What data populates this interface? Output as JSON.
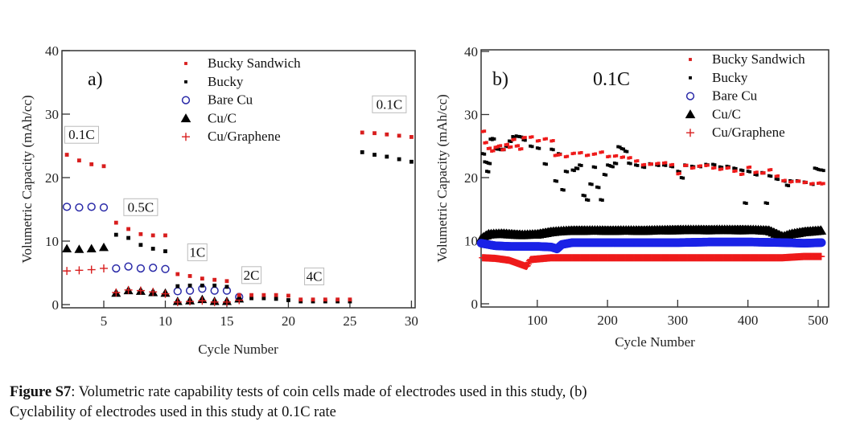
{
  "caption": {
    "label": "Figure S7",
    "text_line1": ": Volumetric rate capability tests of coin cells made of electrodes used in this study, (b)",
    "text_line2": "Cyclability of electrodes used in this study at 0.1C rate"
  },
  "colors": {
    "bucky_sandwich": "#d81e1e",
    "bucky": "#000000",
    "bare_cu": "#2a2aa8",
    "cu_c": "#000000",
    "cu_graphene": "#d81e1e",
    "band_blue": "#1a22e6",
    "band_red": "#ee1a1a"
  },
  "chart_data": [
    {
      "type": "scatter",
      "panel_label": "a)",
      "title": "",
      "xlabel": "Cycle Number",
      "ylabel": "Volumetric Capacity (mAh/cc)",
      "xlim": [
        1.6,
        30.3
      ],
      "ylim": [
        0,
        40
      ],
      "xticks": [
        5,
        10,
        15,
        20,
        25,
        30
      ],
      "yticks": [
        0,
        10,
        20,
        30,
        40
      ],
      "grid": false,
      "legend": {
        "placement": "top-right",
        "entries": [
          {
            "name": "Bucky Sandwich",
            "marker": "square",
            "color": "#d81e1e"
          },
          {
            "name": "Bucky",
            "marker": "square",
            "color": "#000000"
          },
          {
            "name": "Bare Cu",
            "marker": "circle-open",
            "color": "#2a2aa8"
          },
          {
            "name": "Cu/C",
            "marker": "triangle",
            "color": "#000000"
          },
          {
            "name": "Cu/Graphene",
            "marker": "plus",
            "color": "#d81e1e"
          }
        ]
      },
      "annotations": [
        {
          "text": "0.1C",
          "x": 3.2,
          "y": 26.3
        },
        {
          "text": "0.5C",
          "x": 8.0,
          "y": 14.9
        },
        {
          "text": "1C",
          "x": 12.6,
          "y": 7.8
        },
        {
          "text": "2C",
          "x": 17.0,
          "y": 4.2
        },
        {
          "text": "4C",
          "x": 22.1,
          "y": 4.0
        },
        {
          "text": "0.1C",
          "x": 28.2,
          "y": 31.1
        }
      ],
      "series": [
        {
          "name": "Bucky Sandwich",
          "x": [
            2,
            3,
            4,
            5,
            6,
            7,
            8,
            9,
            10,
            11,
            12,
            13,
            14,
            15,
            16,
            17,
            18,
            19,
            20,
            21,
            22,
            23,
            24,
            25,
            26,
            27,
            28,
            29,
            30
          ],
          "y": [
            23.6,
            22.7,
            22.1,
            21.8,
            12.9,
            11.9,
            11.1,
            10.9,
            10.9,
            4.8,
            4.5,
            4.1,
            3.9,
            3.7,
            1.5,
            1.5,
            1.5,
            1.5,
            1.4,
            0.8,
            0.8,
            0.8,
            0.8,
            0.8,
            27.1,
            27.0,
            26.8,
            26.6,
            26.4
          ]
        },
        {
          "name": "Bucky",
          "x": [
            2,
            3,
            4,
            5,
            6,
            7,
            8,
            9,
            10,
            11,
            12,
            13,
            14,
            15,
            16,
            17,
            18,
            19,
            20,
            21,
            22,
            23,
            24,
            25,
            26,
            27,
            28,
            29,
            30
          ],
          "y": [
            null,
            null,
            null,
            null,
            11.0,
            10.5,
            9.4,
            8.8,
            8.4,
            2.9,
            3.0,
            3.0,
            3.0,
            2.8,
            1.1,
            1.0,
            1.0,
            0.9,
            0.7,
            0.5,
            0.5,
            0.5,
            0.5,
            0.5,
            24.0,
            23.6,
            23.3,
            22.9,
            22.5
          ]
        },
        {
          "name": "Bare Cu",
          "x": [
            2,
            3,
            4,
            5,
            6,
            7,
            8,
            9,
            10,
            11,
            12,
            13,
            14,
            15,
            16
          ],
          "y": [
            15.4,
            15.3,
            15.4,
            15.3,
            5.7,
            6.0,
            5.7,
            5.8,
            5.6,
            2.1,
            2.2,
            2.5,
            2.2,
            2.2,
            1.2
          ]
        },
        {
          "name": "Cu/C",
          "x": [
            2,
            3,
            4,
            5,
            6,
            7,
            8,
            9,
            10,
            11,
            12,
            13,
            14,
            15,
            16
          ],
          "y": [
            8.8,
            8.7,
            8.8,
            9.0,
            1.8,
            2.2,
            2.1,
            1.9,
            1.8,
            0.5,
            0.6,
            0.8,
            0.5,
            0.5,
            0.9
          ]
        },
        {
          "name": "Cu/Graphene",
          "x": [
            2,
            3,
            4,
            5,
            6,
            7,
            8,
            9,
            10,
            11,
            12,
            13,
            14,
            15,
            16
          ],
          "y": [
            5.3,
            5.4,
            5.5,
            5.7,
            1.9,
            2.3,
            2.2,
            2.0,
            1.7,
            0.4,
            0.5,
            0.6,
            0.4,
            0.4,
            0.7
          ]
        }
      ]
    },
    {
      "type": "scatter",
      "panel_label": "b)",
      "title": "0.1C",
      "xlabel": "Cycle Number",
      "ylabel": "Volumetric Capacity (mAh/cc)",
      "xlim": [
        20,
        515
      ],
      "ylim": [
        0,
        40
      ],
      "xticks": [
        100,
        200,
        300,
        400,
        500
      ],
      "yticks": [
        0,
        10,
        20,
        30,
        40
      ],
      "grid": false,
      "legend": {
        "placement": "top-right",
        "entries": [
          {
            "name": "Bucky Sandwich",
            "marker": "square",
            "color": "#d81e1e"
          },
          {
            "name": "Bucky",
            "marker": "square",
            "color": "#000000"
          },
          {
            "name": "Bare Cu",
            "marker": "circle-open",
            "color": "#2a2aa8"
          },
          {
            "name": "Cu/C",
            "marker": "triangle",
            "color": "#000000"
          },
          {
            "name": "Cu/Graphene",
            "marker": "plus",
            "color": "#d81e1e"
          }
        ]
      },
      "series": [
        {
          "name": "Bucky Sandwich",
          "x": [
            22,
            25,
            30,
            35,
            40,
            45,
            50,
            55,
            60,
            65,
            70,
            75,
            80,
            90,
            100,
            110,
            120,
            125,
            130,
            140,
            150,
            160,
            170,
            180,
            190,
            200,
            210,
            220,
            230,
            240,
            250,
            260,
            270,
            280,
            290,
            300,
            310,
            320,
            330,
            340,
            350,
            360,
            370,
            380,
            390,
            400,
            410,
            420,
            430,
            440,
            450,
            460,
            470,
            480,
            490,
            500,
            505
          ],
          "y": [
            27.3,
            25.5,
            24.6,
            24.2,
            24.8,
            25.0,
            24.4,
            25.2,
            24.8,
            26.0,
            25.0,
            24.5,
            26.3,
            26.4,
            25.8,
            26.1,
            25.8,
            23.5,
            23.6,
            23.3,
            23.8,
            23.9,
            23.5,
            23.7,
            24.0,
            23.3,
            23.4,
            23.2,
            23.1,
            22.6,
            22.0,
            22.1,
            22.2,
            22.3,
            22.0,
            20.6,
            21.9,
            21.5,
            21.8,
            21.9,
            21.5,
            21.3,
            21.5,
            21.0,
            20.5,
            21.6,
            20.8,
            20.7,
            21.2,
            20.2,
            19.5,
            19.3,
            19.4,
            19.2,
            19.0,
            19.1,
            19.0
          ]
        },
        {
          "name": "Bucky",
          "x": [
            22,
            25,
            28,
            30,
            33,
            36,
            40,
            45,
            50,
            55,
            60,
            65,
            70,
            75,
            80,
            90,
            100,
            110,
            120,
            125,
            130,
            135,
            140,
            150,
            155,
            160,
            165,
            170,
            175,
            180,
            185,
            190,
            195,
            200,
            205,
            210,
            215,
            220,
            225,
            230,
            240,
            250,
            260,
            270,
            280,
            290,
            300,
            305,
            310,
            320,
            330,
            340,
            350,
            360,
            370,
            380,
            390,
            395,
            400,
            410,
            420,
            425,
            430,
            440,
            450,
            455,
            460,
            470,
            480,
            490,
            495,
            500,
            505
          ],
          "y": [
            23.8,
            22.5,
            21.0,
            22.3,
            26.1,
            26.2,
            24.6,
            24.5,
            24.5,
            25.0,
            25.8,
            26.5,
            26.6,
            26.5,
            26.0,
            25.0,
            24.7,
            22.2,
            24.5,
            19.5,
            23.8,
            18.1,
            21.0,
            21.2,
            21.5,
            22.0,
            17.2,
            16.5,
            19.0,
            21.7,
            18.5,
            16.5,
            20.5,
            22.0,
            21.8,
            22.3,
            24.9,
            24.6,
            24.2,
            22.3,
            22.0,
            21.7,
            22.2,
            22.0,
            22.0,
            21.8,
            21.0,
            20.0,
            22.0,
            21.8,
            21.8,
            22.1,
            22.1,
            21.7,
            21.8,
            21.5,
            21.2,
            16.0,
            21.0,
            20.5,
            20.8,
            16.0,
            20.3,
            19.8,
            19.5,
            18.8,
            19.5,
            19.5,
            19.3,
            19.0,
            21.5,
            21.3,
            21.2
          ]
        },
        {
          "name": "Bare Cu",
          "x": [
            20,
            40,
            60,
            80,
            100,
            120,
            128,
            135,
            150,
            200,
            250,
            300,
            350,
            400,
            450,
            480,
            505
          ],
          "y": [
            9.6,
            9.2,
            9.1,
            9.1,
            9.1,
            9.0,
            8.7,
            9.4,
            9.7,
            9.7,
            9.7,
            9.7,
            9.8,
            9.8,
            9.7,
            9.6,
            9.7
          ]
        },
        {
          "name": "Cu/C",
          "x": [
            20,
            30,
            50,
            80,
            100,
            120,
            150,
            200,
            250,
            300,
            350,
            400,
            430,
            450,
            460,
            480,
            505
          ],
          "y": [
            10.3,
            11.0,
            11.1,
            10.9,
            11.0,
            11.4,
            11.6,
            11.6,
            11.6,
            11.7,
            11.7,
            11.7,
            11.6,
            10.6,
            11.0,
            11.4,
            11.6
          ]
        },
        {
          "name": "Cu/Graphene",
          "x": [
            22,
            40,
            60,
            70,
            80,
            85,
            90,
            100,
            120,
            150,
            200,
            250,
            300,
            350,
            400,
            450,
            480,
            505
          ],
          "y": [
            7.3,
            7.2,
            6.9,
            6.5,
            6.1,
            5.9,
            7.0,
            7.1,
            7.3,
            7.3,
            7.3,
            7.3,
            7.3,
            7.3,
            7.3,
            7.3,
            7.5,
            7.5
          ]
        }
      ]
    }
  ]
}
